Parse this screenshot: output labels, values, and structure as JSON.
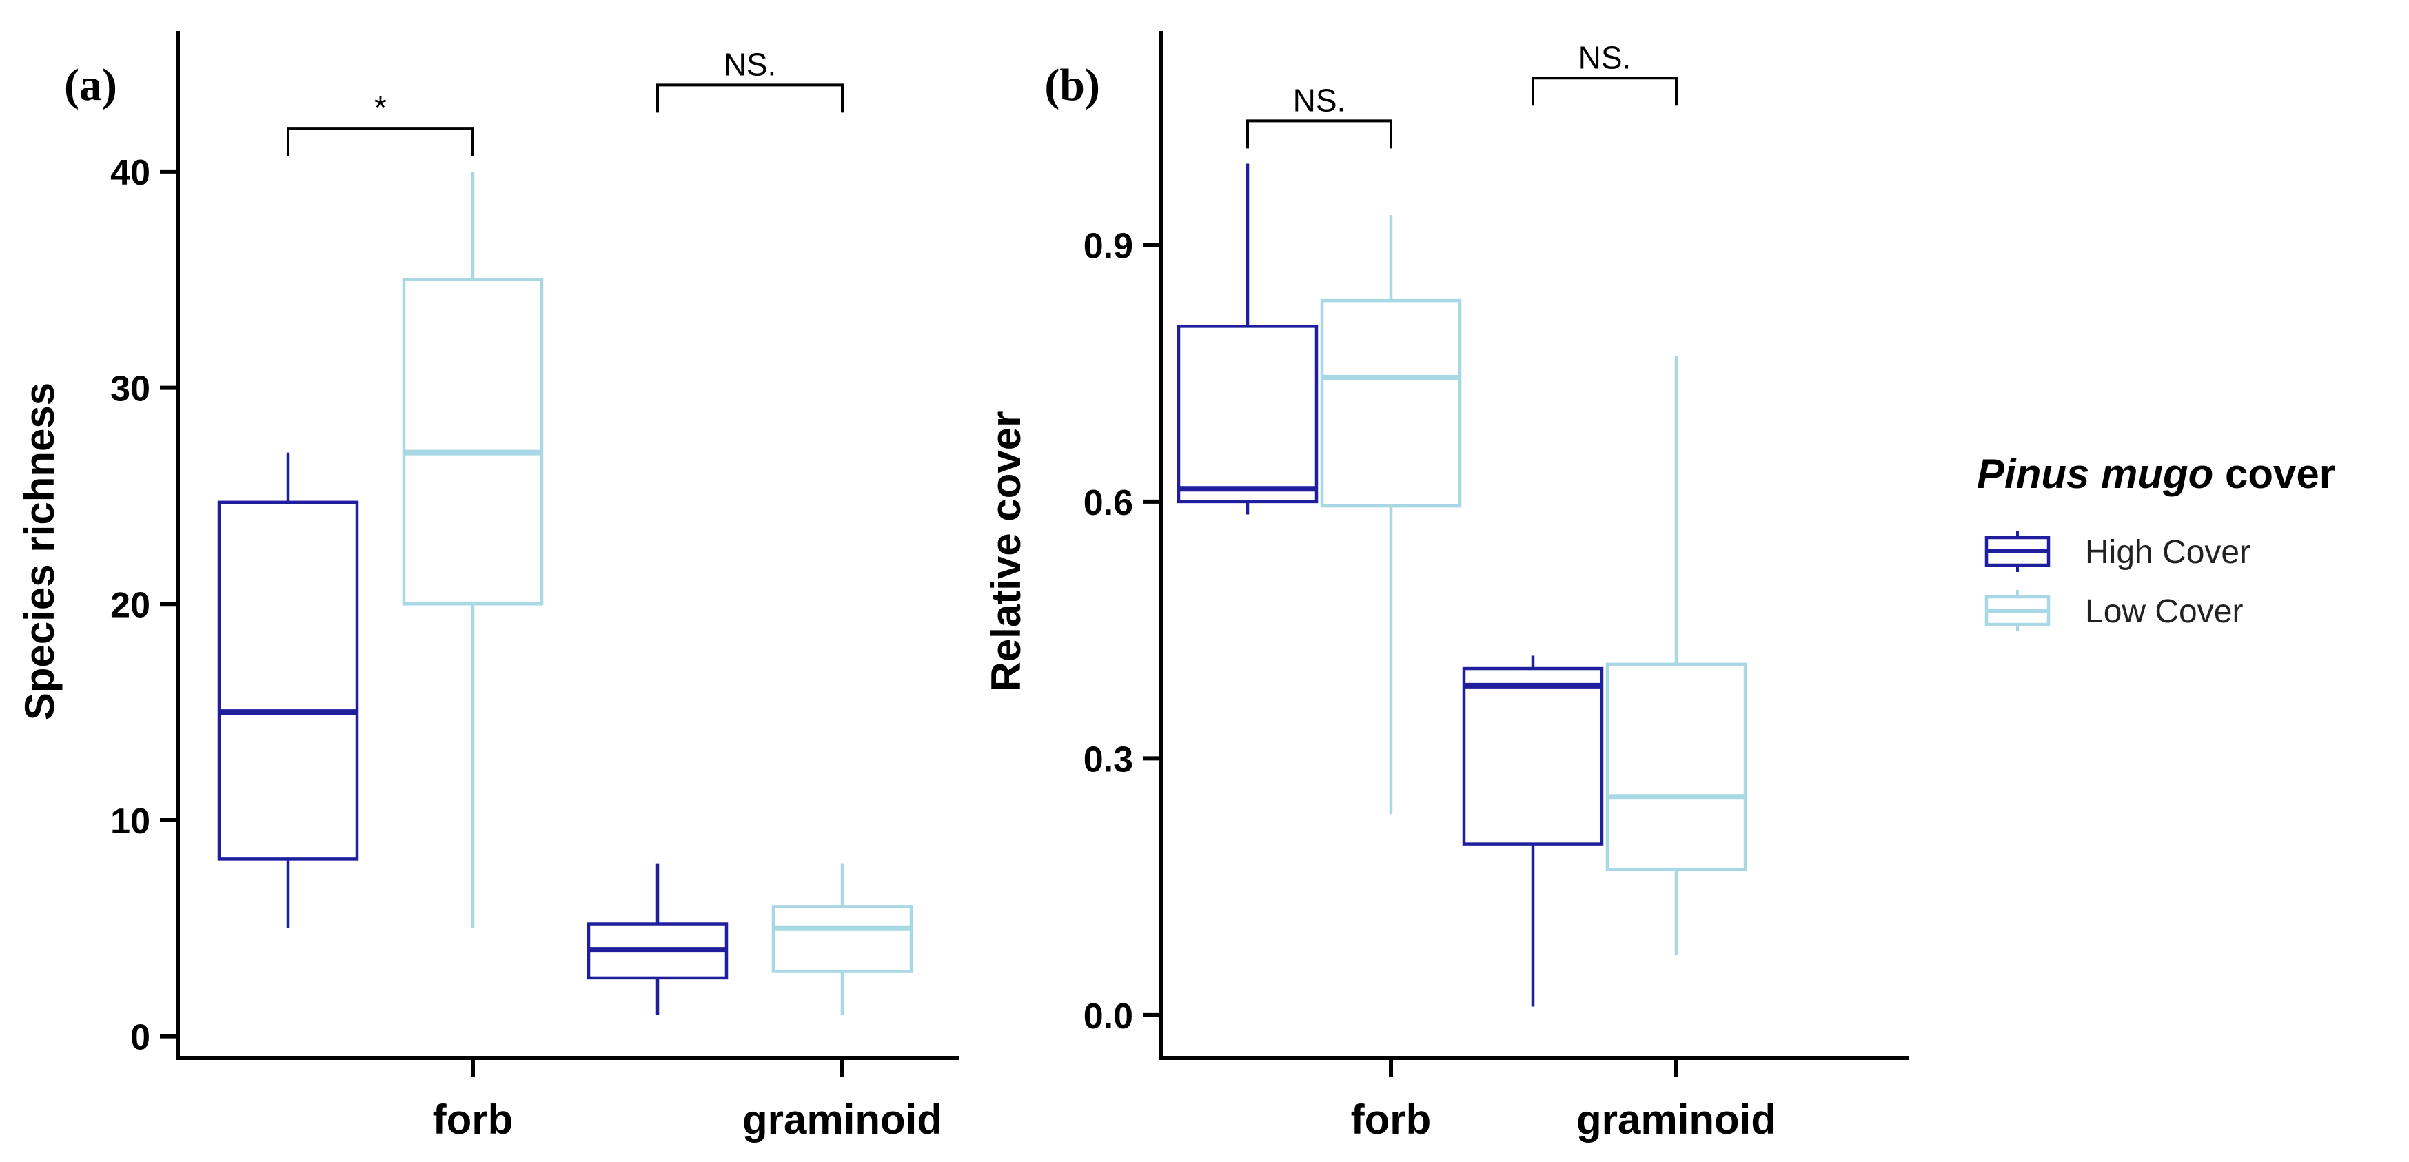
{
  "chart_data": [
    {
      "type": "box",
      "panel_label": "(a)",
      "title": "",
      "xlabel": "",
      "ylabel": "Species richness",
      "categories": [
        "forb",
        "graminoid"
      ],
      "ylim": [
        -1,
        46.5
      ],
      "y_ticks": [
        0,
        10,
        20,
        30,
        40
      ],
      "series": [
        {
          "name": "High Cover",
          "color": "#1f1f9e",
          "boxes": [
            {
              "min": 5,
              "q1": 8.2,
              "median": 15,
              "q3": 24.7,
              "max": 27
            },
            {
              "min": 1,
              "q1": 2.7,
              "median": 4,
              "q3": 5.2,
              "max": 8
            }
          ]
        },
        {
          "name": "Low Cover",
          "color": "#a8d8e4",
          "boxes": [
            {
              "min": 5,
              "q1": 20,
              "median": 27,
              "q3": 35,
              "max": 40
            },
            {
              "min": 1,
              "q1": 3,
              "median": 5,
              "q3": 6,
              "max": 8
            }
          ]
        }
      ],
      "significance": [
        {
          "category": "forb",
          "label": "*",
          "y": 42
        },
        {
          "category": "graminoid",
          "label": "NS.",
          "y": 44
        }
      ]
    },
    {
      "type": "box",
      "panel_label": "(b)",
      "title": "",
      "xlabel": "",
      "ylabel": "Relative cover",
      "categories": [
        "forb",
        "graminoid"
      ],
      "ylim": [
        -0.05,
        1.15
      ],
      "y_ticks": [
        0.0,
        0.3,
        0.6,
        0.9
      ],
      "y_tick_labels": [
        "0.0",
        "0.3",
        "0.6",
        "0.9"
      ],
      "series": [
        {
          "name": "High Cover",
          "color": "#1f1f9e",
          "boxes": [
            {
              "min": 0.585,
              "q1": 0.6,
              "median": 0.615,
              "q3": 0.805,
              "max": 0.995
            },
            {
              "min": 0.01,
              "q1": 0.2,
              "median": 0.385,
              "q3": 0.405,
              "max": 0.42
            }
          ]
        },
        {
          "name": "Low Cover",
          "color": "#a8d8e4",
          "boxes": [
            {
              "min": 0.235,
              "q1": 0.595,
              "median": 0.745,
              "q3": 0.835,
              "max": 0.935
            },
            {
              "min": 0.07,
              "q1": 0.17,
              "median": 0.255,
              "q3": 0.41,
              "max": 0.77
            }
          ]
        }
      ],
      "significance": [
        {
          "category": "forb",
          "label": "NS.",
          "y": 1.045
        },
        {
          "category": "graminoid",
          "label": "NS.",
          "y": 1.095
        }
      ]
    }
  ],
  "legend": {
    "title_italic": "Pinus mugo",
    "title_rest": " cover",
    "position": "right",
    "entries": [
      "High Cover",
      "Low Cover"
    ]
  },
  "colors": {
    "high_cover": "#1f1f9e",
    "low_cover": "#a8d8e4",
    "axis": "#000000"
  }
}
